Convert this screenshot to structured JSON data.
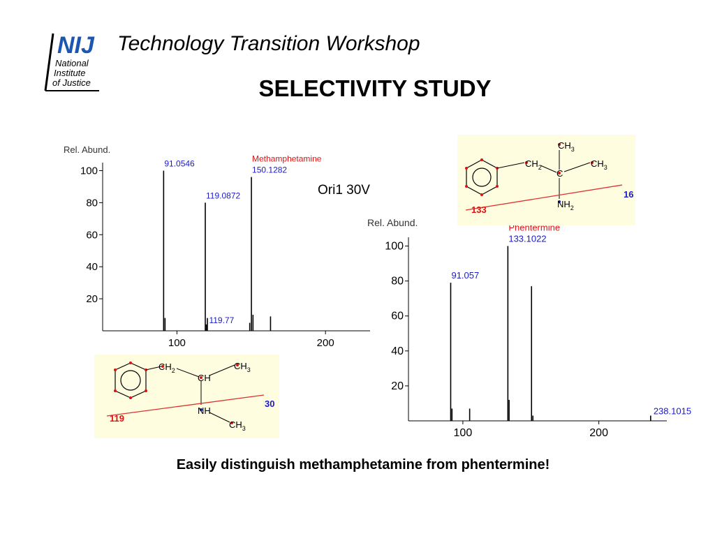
{
  "logo": {
    "abbr": "NIJ",
    "line1": "National",
    "line2": "Institute",
    "line3": "of Justice",
    "color": "#1c56b0"
  },
  "header": {
    "workshop_title": "Technology Transition Workshop",
    "slide_title": "SELECTIVITY STUDY"
  },
  "condition_label": "Ori1 30V",
  "footer_text": "Easily distinguish methamphetamine from phentermine!",
  "chart_data": [
    {
      "type": "bar",
      "chart_kind": "mass-spectrum",
      "ylabel": "Rel. Abund.",
      "compound": "Methamphetamine",
      "xlim": [
        50,
        230
      ],
      "ylim": [
        0,
        105
      ],
      "xticks": [
        100,
        200
      ],
      "yticks": [
        20,
        40,
        60,
        80,
        100
      ],
      "peaks": [
        {
          "mz": 91.0546,
          "rel": 100,
          "label": "91.0546"
        },
        {
          "mz": 92,
          "rel": 8
        },
        {
          "mz": 119.0872,
          "rel": 80,
          "label": "119.0872"
        },
        {
          "mz": 120.5,
          "rel": 8
        },
        {
          "mz": 119.77,
          "rel": 4,
          "label": "119.77"
        },
        {
          "mz": 149,
          "rel": 5
        },
        {
          "mz": 150.1282,
          "rel": 96,
          "label": "150.1282"
        },
        {
          "mz": 151.2,
          "rel": 10
        },
        {
          "mz": 163,
          "rel": 9
        }
      ],
      "compound_label_peak": "150.1282"
    },
    {
      "type": "bar",
      "chart_kind": "mass-spectrum",
      "ylabel": "Rel. Abund.",
      "compound": "Phentermine",
      "xlim": [
        60,
        250
      ],
      "ylim": [
        0,
        105
      ],
      "xticks": [
        100,
        200
      ],
      "yticks": [
        20,
        40,
        60,
        80,
        100
      ],
      "peaks": [
        {
          "mz": 91.057,
          "rel": 79,
          "label": "91.057"
        },
        {
          "mz": 92,
          "rel": 7
        },
        {
          "mz": 105,
          "rel": 7
        },
        {
          "mz": 133.1022,
          "rel": 100,
          "label": "133.1022"
        },
        {
          "mz": 134,
          "rel": 12
        },
        {
          "mz": 150.5,
          "rel": 77
        },
        {
          "mz": 151.5,
          "rel": 3
        },
        {
          "mz": 238.1015,
          "rel": 3,
          "label": "238.1015"
        }
      ],
      "compound_label_peak": "133.1022"
    }
  ],
  "structures": {
    "methamphetamine": {
      "fragment_left": "119",
      "fragment_right": "30",
      "atoms": [
        {
          "t": "CH",
          "sub": "2"
        },
        {
          "t": "CH",
          "sub": ""
        },
        {
          "t": "CH",
          "sub": "3"
        },
        {
          "t": "NH",
          "sub": ""
        },
        {
          "t": "CH",
          "sub": "3"
        }
      ]
    },
    "phentermine": {
      "fragment_left": "133",
      "fragment_right": "16",
      "atoms": [
        {
          "t": "CH",
          "sub": "2"
        },
        {
          "t": "C",
          "sub": ""
        },
        {
          "t": "CH",
          "sub": "3"
        },
        {
          "t": "CH",
          "sub": "3"
        },
        {
          "t": "NH",
          "sub": "2"
        }
      ]
    }
  },
  "colors": {
    "peak_label": "#1a1acc",
    "compound": "#e01010",
    "cleave": "#e03030",
    "fragment": "#1a1acc",
    "panel": "#fffde0"
  }
}
